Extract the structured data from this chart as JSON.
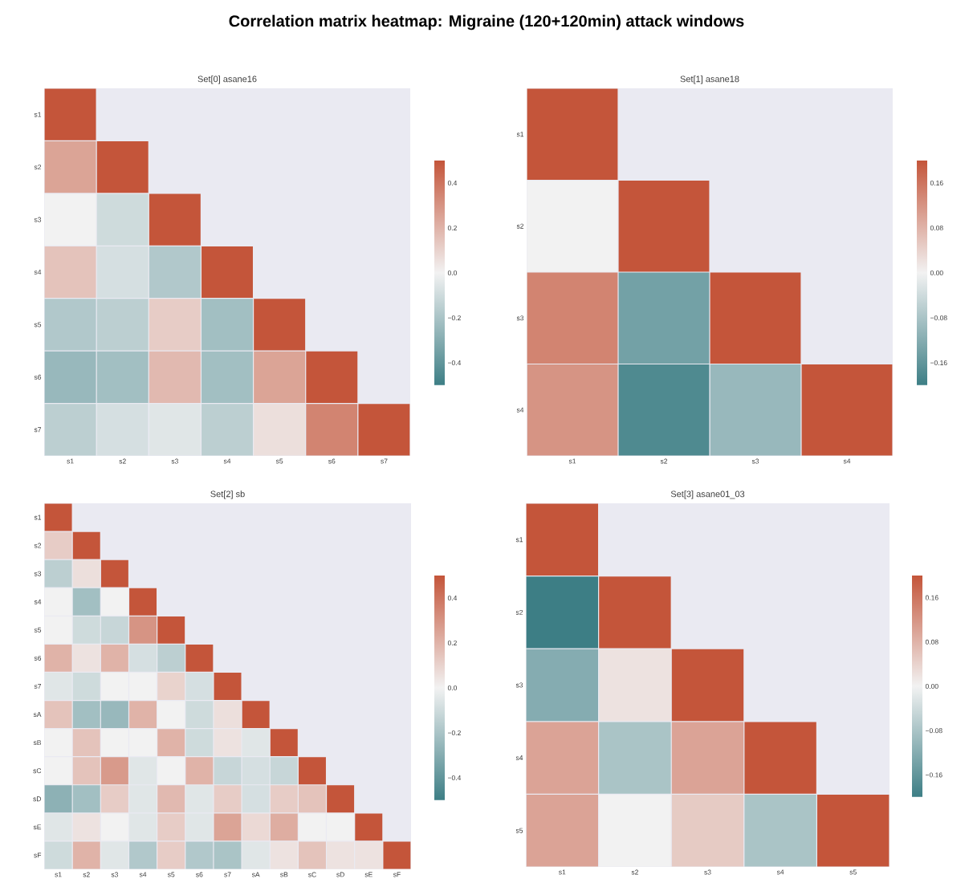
{
  "chart_data": [
    {
      "type": "heatmap",
      "title": "Set[0]  asane16",
      "annotations": [
        "Correlation matrix heatmap: Migraine (120+120min) attack windows"
      ],
      "categories": [
        "s1",
        "s2",
        "s3",
        "s4",
        "s5",
        "s6",
        "s7"
      ],
      "y_categories": [
        "s1",
        "s2",
        "s3",
        "s4",
        "s5",
        "s6",
        "s7"
      ],
      "cells": [
        [
          0.5,
          null,
          null,
          null,
          null,
          null,
          null
        ],
        [
          0.25,
          0.5,
          null,
          null,
          null,
          null,
          null
        ],
        [
          0.0,
          -0.1,
          0.5,
          null,
          null,
          null,
          null
        ],
        [
          0.15,
          -0.08,
          -0.18,
          0.5,
          null,
          null,
          null
        ],
        [
          -0.18,
          -0.15,
          0.12,
          -0.22,
          0.5,
          null,
          null
        ],
        [
          -0.25,
          -0.22,
          0.18,
          -0.22,
          0.25,
          0.5,
          null
        ],
        [
          -0.15,
          -0.08,
          -0.05,
          -0.15,
          0.06,
          0.35,
          0.5
        ]
      ],
      "clim": [
        -0.5,
        0.5
      ],
      "cticks": [
        {
          "value": -0.4,
          "label": "−0.4"
        },
        {
          "value": -0.2,
          "label": "−0.2"
        },
        {
          "value": 0,
          "label": "0.0"
        },
        0.2,
        0.4
      ]
    },
    {
      "type": "heatmap",
      "title": "Set[1]  asane18",
      "categories": [
        "s1",
        "s2",
        "s3",
        "s4"
      ],
      "y_categories": [
        "s1",
        "s2",
        "s3",
        "s4"
      ],
      "cells": [
        [
          0.2,
          null,
          null,
          null
        ],
        [
          0.0,
          0.2,
          null,
          null
        ],
        [
          0.14,
          -0.14,
          0.2,
          null
        ],
        [
          0.12,
          -0.18,
          -0.1,
          0.2
        ]
      ],
      "clim": [
        -0.2,
        0.2
      ],
      "cticks": [
        {
          "value": -0.16,
          "label": "−0.16"
        },
        {
          "value": -0.08,
          "label": "−0.08"
        },
        {
          "value": 0,
          "label": "0.00"
        },
        0.08,
        0.16
      ]
    },
    {
      "type": "heatmap",
      "title": "Set[2]  sb",
      "categories": [
        "s1",
        "s2",
        "s3",
        "s4",
        "s5",
        "s6",
        "s7",
        "sA",
        "sB",
        "sC",
        "sD",
        "sE",
        "sF"
      ],
      "y_categories": [
        "s1",
        "s2",
        "s3",
        "s4",
        "s5",
        "s6",
        "s7",
        "sA",
        "sB",
        "sC",
        "sD",
        "sE",
        "sF"
      ],
      "cells": [
        [
          0.5,
          null,
          null,
          null,
          null,
          null,
          null,
          null,
          null,
          null,
          null,
          null,
          null
        ],
        [
          0.12,
          0.5,
          null,
          null,
          null,
          null,
          null,
          null,
          null,
          null,
          null,
          null,
          null
        ],
        [
          -0.15,
          0.06,
          0.5,
          null,
          null,
          null,
          null,
          null,
          null,
          null,
          null,
          null,
          null
        ],
        [
          0.0,
          -0.22,
          0.0,
          0.5,
          null,
          null,
          null,
          null,
          null,
          null,
          null,
          null,
          null
        ],
        [
          0.0,
          -0.1,
          -0.12,
          0.3,
          0.5,
          null,
          null,
          null,
          null,
          null,
          null,
          null,
          null
        ],
        [
          0.2,
          0.05,
          0.2,
          -0.08,
          -0.15,
          0.5,
          null,
          null,
          null,
          null,
          null,
          null,
          null
        ],
        [
          -0.05,
          -0.1,
          0.0,
          0.0,
          0.1,
          -0.08,
          0.5,
          null,
          null,
          null,
          null,
          null,
          null
        ],
        [
          0.15,
          -0.22,
          -0.25,
          0.2,
          0.0,
          -0.1,
          0.06,
          0.5,
          null,
          null,
          null,
          null,
          null
        ],
        [
          0.0,
          0.15,
          0.0,
          0.0,
          0.2,
          -0.1,
          0.05,
          -0.05,
          0.5,
          null,
          null,
          null,
          null
        ],
        [
          0.0,
          0.15,
          0.28,
          -0.05,
          0.0,
          0.2,
          -0.12,
          -0.08,
          -0.12,
          0.5,
          null,
          null,
          null
        ],
        [
          -0.28,
          -0.22,
          0.12,
          -0.05,
          0.18,
          -0.05,
          0.12,
          -0.08,
          0.12,
          0.15,
          0.5,
          null,
          null
        ],
        [
          -0.05,
          0.05,
          0.0,
          -0.05,
          0.12,
          -0.05,
          0.25,
          0.08,
          0.22,
          0.0,
          0.0,
          0.5,
          null
        ],
        [
          -0.1,
          0.2,
          -0.05,
          -0.18,
          0.12,
          -0.18,
          -0.2,
          -0.05,
          0.05,
          0.15,
          0.05,
          0.05,
          0.5
        ]
      ],
      "clim": [
        -0.5,
        0.5
      ],
      "cticks": [
        {
          "value": -0.4,
          "label": "−0.4"
        },
        {
          "value": -0.2,
          "label": "−0.2"
        },
        {
          "value": 0,
          "label": "0.0"
        },
        0.2,
        0.4
      ]
    },
    {
      "type": "heatmap",
      "title": "Set[3]  asane01_03",
      "categories": [
        "s1",
        "s2",
        "s3",
        "s4",
        "s5"
      ],
      "y_categories": [
        "s1",
        "s2",
        "s3",
        "s4",
        "s5"
      ],
      "cells": [
        [
          0.2,
          null,
          null,
          null,
          null
        ],
        [
          -0.2,
          0.2,
          null,
          null,
          null
        ],
        [
          -0.12,
          0.02,
          0.2,
          null,
          null
        ],
        [
          0.1,
          -0.08,
          0.1,
          0.2,
          null
        ],
        [
          0.1,
          0.0,
          0.05,
          -0.08,
          0.2
        ]
      ],
      "clim": [
        -0.2,
        0.2
      ],
      "cticks": [
        {
          "value": -0.16,
          "label": "−0.16"
        },
        {
          "value": -0.08,
          "label": "−0.08"
        },
        {
          "value": 0,
          "label": "0.00"
        },
        0.08,
        0.16
      ]
    }
  ]
}
